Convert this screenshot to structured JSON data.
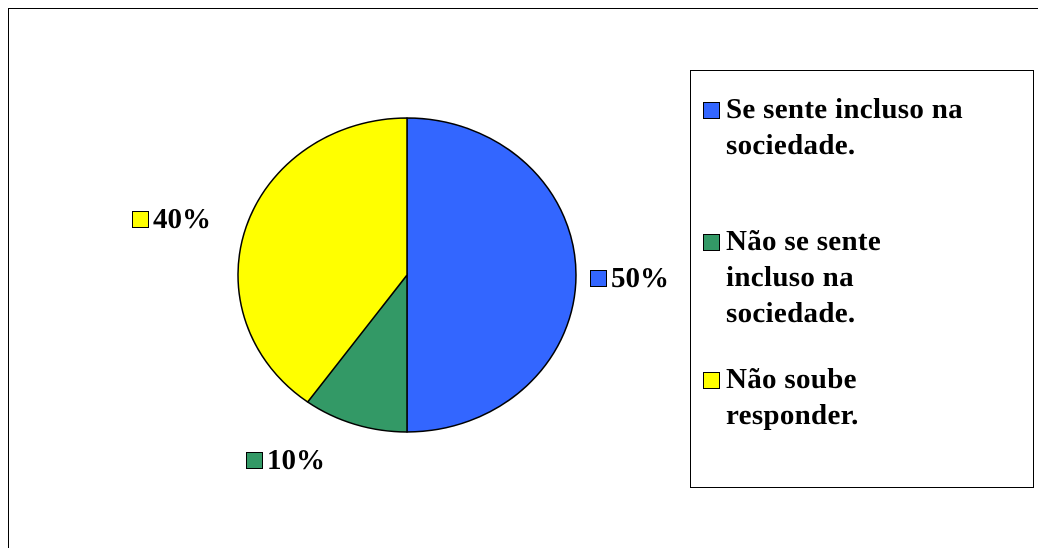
{
  "chart_data": {
    "type": "pie",
    "slices": [
      {
        "name": "Se sente incluso na sociedade.",
        "legend_lines": [
          "Se sente incluso na",
          "sociedade."
        ],
        "value": 50,
        "label": "50%",
        "color": "#3366FF"
      },
      {
        "name": "Não se sente incluso na sociedade.",
        "legend_lines": [
          "Não se sente",
          "incluso na",
          "sociedade."
        ],
        "value": 10,
        "label": "10%",
        "color": "#339966"
      },
      {
        "name": "Não soube responder.",
        "legend_lines": [
          "Não soube",
          "responder."
        ],
        "value": 40,
        "label": "40%",
        "color": "#FFFF00"
      }
    ],
    "legend_position": "right"
  }
}
